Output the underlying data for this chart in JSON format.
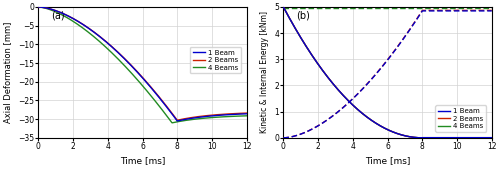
{
  "xlim": [
    0,
    12
  ],
  "panel_a": {
    "label": "(a)",
    "ylabel": "Axial Deformation [mm]",
    "xlabel": "Time [ms]",
    "ylim": [
      -35,
      0
    ],
    "yticks": [
      0,
      -5,
      -10,
      -15,
      -20,
      -25,
      -30,
      -35
    ],
    "xticks": [
      0,
      2,
      4,
      6,
      8,
      10,
      12
    ],
    "colors": {
      "1beam": "#0000cd",
      "2beam": "#cc2200",
      "4beam": "#228B22"
    },
    "legend": [
      "1 Beam",
      "2 Beams",
      "4 Beams"
    ]
  },
  "panel_b": {
    "label": "(b)",
    "ylabel": "Kinetic & Internal Energy [kNm]",
    "xlabel": "Time [ms]",
    "ylim": [
      0,
      5
    ],
    "yticks": [
      0,
      1,
      2,
      3,
      4,
      5
    ],
    "xticks": [
      0,
      2,
      4,
      6,
      8,
      10,
      12
    ],
    "colors": {
      "1beam": "#0000cd",
      "2beam": "#cc2200",
      "4beam": "#228B22"
    },
    "legend": [
      "1 Beam",
      "2 Beams",
      "4 Beams"
    ]
  },
  "background_color": "#ffffff",
  "grid_color": "#d3d3d3",
  "fig_width": 5.0,
  "fig_height": 1.69,
  "dpi": 100
}
